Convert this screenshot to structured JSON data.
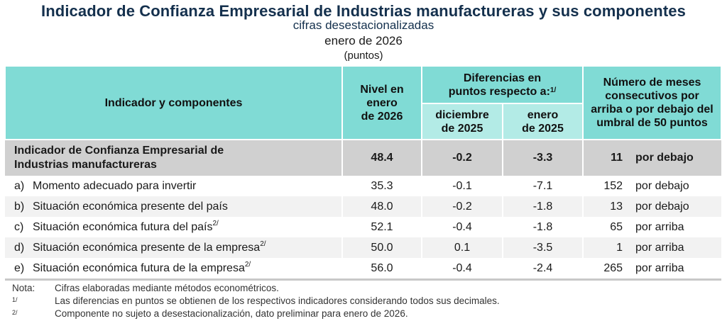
{
  "header": {
    "title": "Indicador de Confianza Empresarial de Industrias manufactureras y sus componentes",
    "subtitle": "cifras desestacionalizadas",
    "period": "enero de 2026",
    "units": "(puntos)"
  },
  "table": {
    "columns": {
      "indicator": "Indicador y componentes",
      "level_l1": "Nivel en",
      "level_l2": "enero",
      "level_l3": "de 2026",
      "diff_l1": "Diferencias en",
      "diff_l2": "puntos respecto a:",
      "diff_sup": "1/",
      "dec_l1": "diciembre",
      "dec_l2": "de 2025",
      "jan_l1": "enero",
      "jan_l2": "de 2025",
      "months_l1": "Número de meses",
      "months_l2": "consecutivos por",
      "months_l3": "arriba o por debajo del",
      "months_l4": "umbral de 50 puntos"
    },
    "main_row": {
      "label_l1": "Indicador de Confianza Empresarial de",
      "label_l2": "Industrias manufactureras",
      "level": "48.4",
      "diff_dec": "-0.2",
      "diff_jan": "-3.3",
      "months": "11",
      "direction": "por debajo"
    },
    "rows": [
      {
        "letter": "a)",
        "label": "Momento adecuado para invertir",
        "sup": "",
        "level": "35.3",
        "diff_dec": "-0.1",
        "diff_jan": "-7.1",
        "months": "152",
        "direction": "por debajo"
      },
      {
        "letter": "b)",
        "label": "Situación económica presente del país",
        "sup": "",
        "level": "48.0",
        "diff_dec": "-0.2",
        "diff_jan": "-1.8",
        "months": "13",
        "direction": "por debajo"
      },
      {
        "letter": "c)",
        "label": "Situación económica futura del país",
        "sup": "2/",
        "level": "52.1",
        "diff_dec": "-0.4",
        "diff_jan": "-1.8",
        "months": "65",
        "direction": "por arriba"
      },
      {
        "letter": "d)",
        "label": "Situación económica presente de la empresa",
        "sup": "2/",
        "level": "50.0",
        "diff_dec": "0.1",
        "diff_jan": "-3.5",
        "months": "1",
        "direction": "por arriba"
      },
      {
        "letter": "e)",
        "label": "Situación económica futura de la empresa",
        "sup": "2/",
        "level": "56.0",
        "diff_dec": "-0.4",
        "diff_jan": "-2.4",
        "months": "265",
        "direction": "por arriba"
      }
    ]
  },
  "notes": [
    {
      "key": "Nota:",
      "key_sup": "",
      "text": "Cifras elaboradas mediante métodos econométricos."
    },
    {
      "key": "",
      "key_sup": "1/",
      "text": "Las diferencias en puntos se obtienen de los respectivos indicadores considerando todos sus decimales."
    },
    {
      "key": "",
      "key_sup": "2/",
      "text": "Componente no sujeto a desestacionalización, dato preliminar para enero de 2026."
    }
  ],
  "colors": {
    "header_teal": "#80dbd5",
    "subheader_teal": "#b3ebe6",
    "main_row_gray": "#d0d0d0",
    "alt_row_gray": "#f2f2f2",
    "title_navy": "#14304d"
  }
}
